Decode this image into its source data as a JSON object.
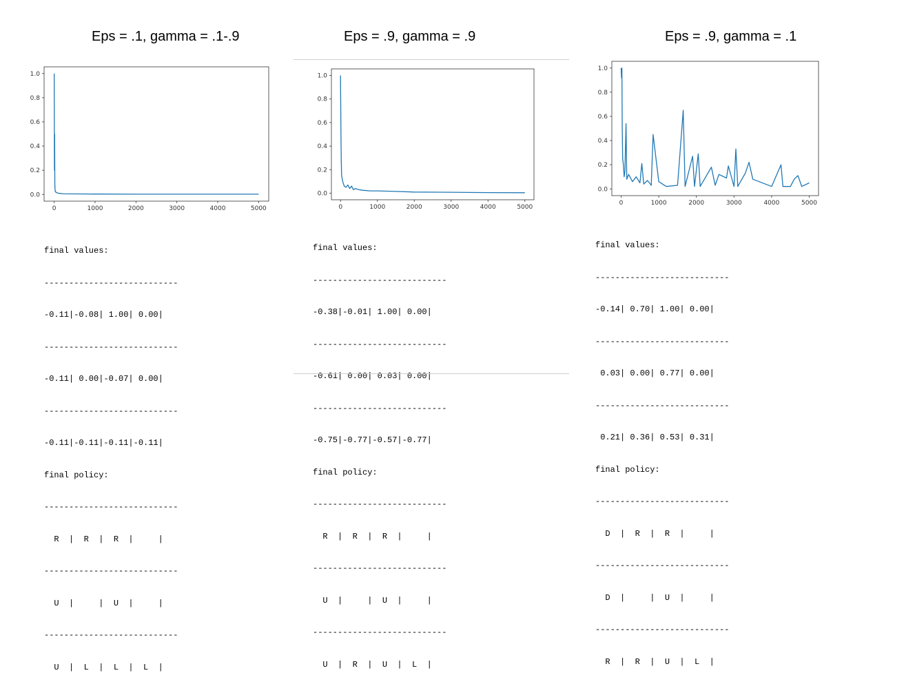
{
  "chart_data": [
    {
      "type": "line",
      "title": "Eps = .1, gamma = .1-.9",
      "xlim": [
        0,
        5000
      ],
      "ylim": [
        0,
        1
      ],
      "x_ticks": [
        "0",
        "1000",
        "2000",
        "3000",
        "4000",
        "5000"
      ],
      "y_ticks": [
        "0.0",
        "0.2",
        "0.4",
        "0.6",
        "0.8",
        "1.0"
      ],
      "series": [
        {
          "color": "#1f77b4",
          "x": [
            0,
            5,
            10,
            15,
            20,
            30,
            40,
            60,
            80,
            100,
            150,
            200,
            500,
            1000,
            2000,
            3000,
            4000,
            5000
          ],
          "y": [
            1.0,
            0.2,
            0.5,
            0.08,
            0.04,
            0.02,
            0.02,
            0.015,
            0.012,
            0.01,
            0.008,
            0.005,
            0.004,
            0.003,
            0.002,
            0.002,
            0.002,
            0.002
          ]
        }
      ]
    },
    {
      "type": "line",
      "title": "Eps = .9, gamma = .9",
      "xlim": [
        0,
        5000
      ],
      "ylim": [
        0,
        1
      ],
      "x_ticks": [
        "0",
        "1000",
        "2000",
        "3000",
        "4000",
        "5000"
      ],
      "y_ticks": [
        "0.0",
        "0.2",
        "0.4",
        "0.6",
        "0.8",
        "1.0"
      ],
      "series": [
        {
          "color": "#1f77b4",
          "x": [
            0,
            10,
            20,
            30,
            40,
            60,
            80,
            100,
            150,
            200,
            250,
            300,
            350,
            400,
            500,
            600,
            800,
            1000,
            1500,
            2000,
            3000,
            4000,
            5000
          ],
          "y": [
            1.0,
            0.53,
            0.27,
            0.15,
            0.13,
            0.1,
            0.08,
            0.06,
            0.05,
            0.07,
            0.04,
            0.06,
            0.03,
            0.04,
            0.03,
            0.025,
            0.02,
            0.02,
            0.015,
            0.01,
            0.008,
            0.005,
            0.004
          ]
        }
      ]
    },
    {
      "type": "line",
      "title": "Eps = .9, gamma = .1",
      "xlim": [
        0,
        5000
      ],
      "ylim": [
        0,
        1
      ],
      "x_ticks": [
        "0",
        "1000",
        "2000",
        "3000",
        "4000",
        "5000"
      ],
      "y_ticks": [
        "0.0",
        "0.2",
        "0.4",
        "0.6",
        "0.8",
        "1.0"
      ],
      "series": [
        {
          "color": "#1f77b4",
          "x": [
            0,
            10,
            20,
            30,
            40,
            60,
            80,
            100,
            130,
            150,
            200,
            300,
            400,
            500,
            550,
            600,
            700,
            800,
            850,
            1000,
            1200,
            1500,
            1650,
            1700,
            1900,
            1950,
            2050,
            2100,
            2400,
            2500,
            2600,
            2800,
            2850,
            3000,
            3050,
            3100,
            3300,
            3400,
            3500,
            4000,
            4250,
            4300,
            4500,
            4600,
            4700,
            4800,
            5000
          ],
          "y": [
            1.0,
            0.92,
            1.0,
            0.5,
            0.25,
            0.2,
            0.1,
            0.15,
            0.54,
            0.08,
            0.12,
            0.06,
            0.1,
            0.05,
            0.21,
            0.04,
            0.07,
            0.03,
            0.45,
            0.06,
            0.02,
            0.03,
            0.65,
            0.02,
            0.27,
            0.02,
            0.29,
            0.02,
            0.18,
            0.03,
            0.12,
            0.09,
            0.19,
            0.02,
            0.33,
            0.02,
            0.13,
            0.22,
            0.08,
            0.02,
            0.2,
            0.02,
            0.02,
            0.08,
            0.11,
            0.02,
            0.05
          ]
        }
      ]
    }
  ],
  "tables": [
    {
      "values_label": "final values:",
      "values_rows": [
        "-0.11|-0.08| 1.00| 0.00|",
        "-0.11| 0.00|-0.07| 0.00|",
        "-0.11|-0.11|-0.11|-0.11|"
      ],
      "policy_label": "final policy:",
      "policy_rows": [
        "  R  |  R  |  R  |     |",
        "  U  |     |  U  |     |",
        "  U  |  L  |  L  |  L  |"
      ]
    },
    {
      "values_label": "final values:",
      "values_rows": [
        "-0.38|-0.01| 1.00| 0.00|",
        "-0.61| 0.00| 0.03| 0.00|",
        "-0.75|-0.77|-0.57|-0.77|"
      ],
      "policy_label": "final policy:",
      "policy_rows": [
        "  R  |  R  |  R  |     |",
        "  U  |     |  U  |     |",
        "  U  |  R  |  U  |  L  |"
      ]
    },
    {
      "values_label": "final values:",
      "values_rows": [
        "-0.14| 0.70| 1.00| 0.00|",
        " 0.03| 0.00| 0.77| 0.00|",
        " 0.21| 0.36| 0.53| 0.31|"
      ],
      "policy_label": "final policy:",
      "policy_rows": [
        "  D  |  R  |  R  |     |",
        "  D  |     |  U  |     |",
        "  R  |  R  |  U  |  L  |"
      ]
    }
  ],
  "separator": "---------------------------"
}
